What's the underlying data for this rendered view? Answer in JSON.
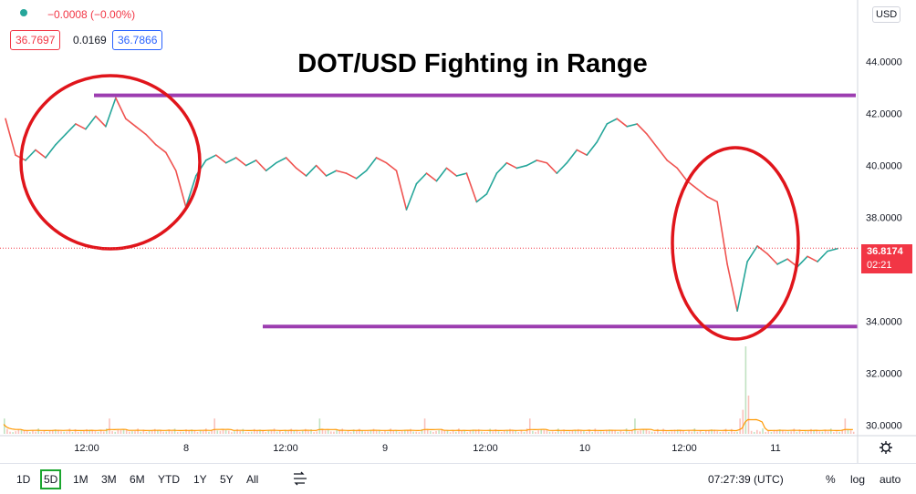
{
  "header": {
    "change": "−0.0008 (−0.00%)",
    "bid": "36.7697",
    "spread": "0.0169",
    "ask": "36.7866",
    "dot_color": "#26a69a"
  },
  "currency": "USD",
  "price_tag": {
    "price": "36.8174",
    "countdown": "02:21",
    "color": "#f23645"
  },
  "toolbar": {
    "ranges": [
      "1D",
      "5D",
      "1M",
      "3M",
      "6M",
      "YTD",
      "1Y",
      "5Y",
      "All"
    ],
    "active_range": "5D",
    "compare_icon": "compare-icon",
    "time": "07:27:39 (UTC)",
    "percent": "%",
    "log": "log",
    "auto": "auto",
    "settings_icon": "gear-icon"
  },
  "chart_data": {
    "type": "line",
    "title": "DOT/USD Fighting in Range",
    "ylim": [
      29.6,
      46.3
    ],
    "y_ticks": [
      "30.0000",
      "32.0000",
      "34.0000",
      "36.0000",
      "38.0000",
      "40.0000",
      "42.0000",
      "44.0000"
    ],
    "x_ticks": [
      "12:00",
      "8",
      "12:00",
      "9",
      "12:00",
      "10",
      "12:00",
      "11"
    ],
    "series": [
      {
        "values": [
          41.8,
          40.4,
          40.2,
          40.6,
          40.3,
          40.8,
          41.2,
          41.6,
          41.4,
          41.9,
          41.5,
          42.6,
          41.8,
          41.5,
          41.2,
          40.8,
          40.5,
          39.8,
          38.4,
          39.6,
          40.2,
          40.4,
          40.1,
          40.3,
          40.0,
          40.2,
          39.8,
          40.1,
          40.3,
          39.9,
          39.6,
          40.0,
          39.6,
          39.8,
          39.7,
          39.5,
          39.8,
          40.3,
          40.1,
          39.8,
          38.3,
          39.3,
          39.7,
          39.4,
          39.9,
          39.6,
          39.7,
          38.6,
          38.9,
          39.7,
          40.1,
          39.9,
          40.0,
          40.2,
          40.1,
          39.7,
          40.1,
          40.6,
          40.4,
          40.9,
          41.6,
          41.8,
          41.5,
          41.6,
          41.2,
          40.7,
          40.2,
          39.9,
          39.4,
          39.1,
          38.8,
          38.6,
          36.2,
          34.4,
          36.3,
          36.9,
          36.6,
          36.2,
          36.4,
          36.1,
          36.5,
          36.3,
          36.7,
          36.8
        ],
        "color": "#26a69a",
        "down_color": "#ef5350"
      }
    ],
    "volume_series": [
      {
        "name": "volume",
        "color": "#f7a6a0"
      },
      {
        "name": "volume ma",
        "color": "#ff9800"
      }
    ],
    "levels": [
      {
        "name": "resistance",
        "value": 42.7,
        "color": "#9c3db0"
      },
      {
        "name": "support",
        "value": 33.8,
        "color": "#9c3db0"
      }
    ],
    "last_price": 36.8174
  }
}
